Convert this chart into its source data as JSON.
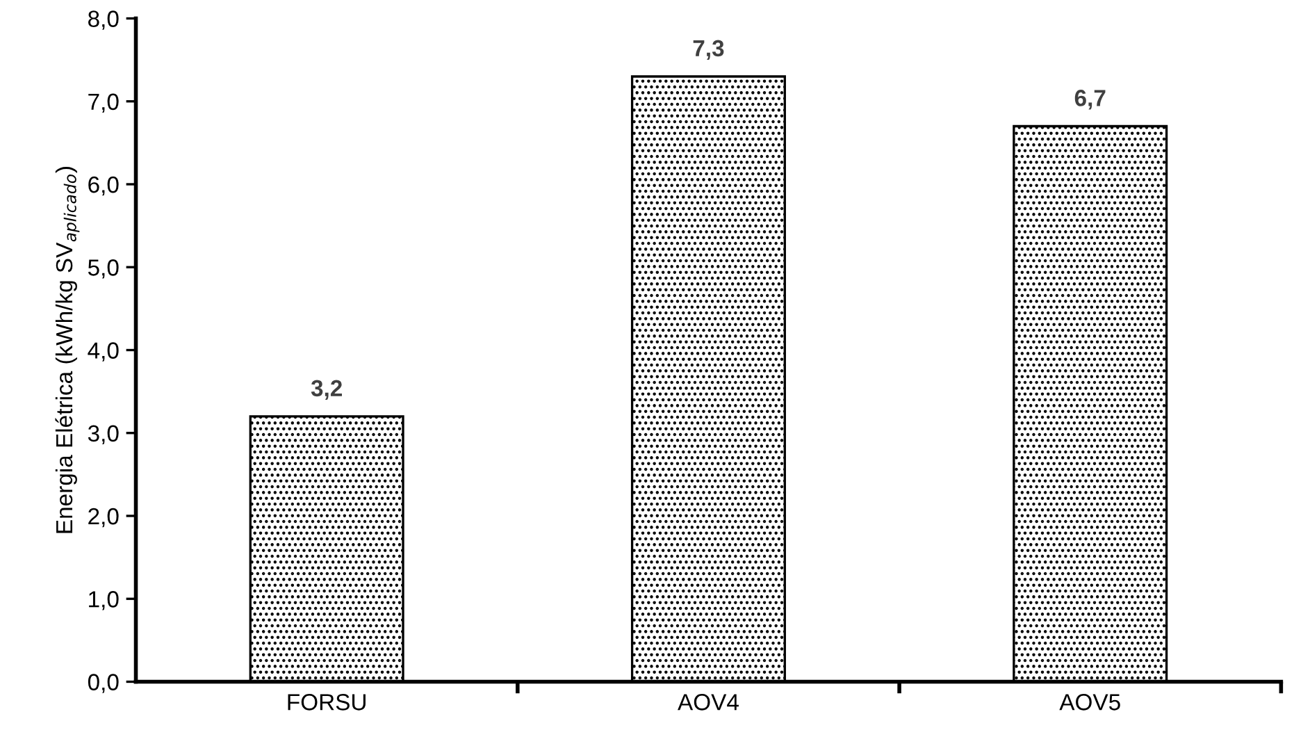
{
  "chart_data": {
    "type": "bar",
    "ylabel": "Energia Elétrica (kWh/kg SV$_{aplicado}$)",
    "categories": [
      "FORSU",
      "AOV4",
      "AOV5"
    ],
    "values": [
      3.2,
      7.3,
      6.7
    ],
    "value_labels": [
      "3,2",
      "7,3",
      "6,7"
    ],
    "color": "#000000",
    "ylim": [
      0,
      8
    ],
    "yticks": [
      {
        "value": 0,
        "label": "0,0"
      },
      {
        "value": 1,
        "label": "1,0"
      },
      {
        "value": 2,
        "label": "2,0"
      },
      {
        "value": 3,
        "label": "3,0"
      },
      {
        "value": 4,
        "label": "4,0"
      },
      {
        "value": 5,
        "label": "5,0"
      },
      {
        "value": 6,
        "label": "6,0"
      },
      {
        "value": 7,
        "label": "7,0"
      },
      {
        "value": 8,
        "label": "8,0"
      }
    ],
    "grid": false,
    "legend": false
  }
}
